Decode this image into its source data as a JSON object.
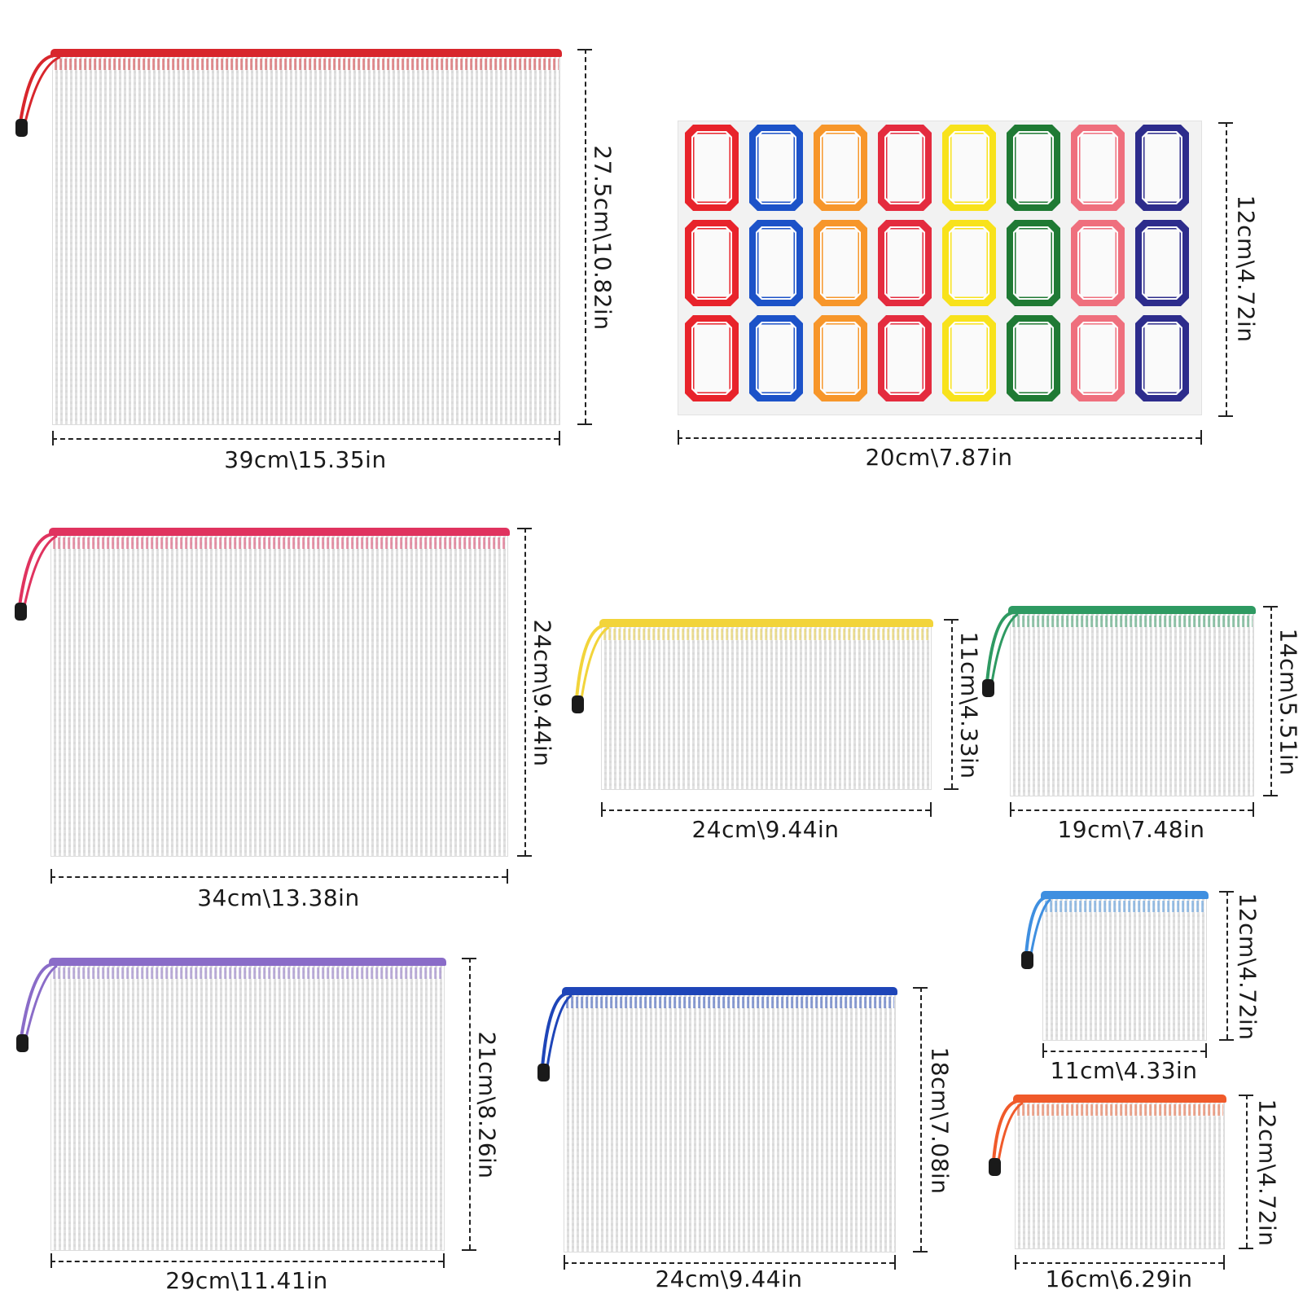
{
  "colors": {
    "red": "#d8262c",
    "pink": "#e0335f",
    "yellow": "#f2d43a",
    "green": "#2e9a62",
    "purple": "#8a6cc8",
    "blue": "#1e45b8",
    "light_blue": "#3f8fe0",
    "orange": "#f05a2a"
  },
  "label_sheet": {
    "colors": [
      "#e8232b",
      "#1c52c8",
      "#f7962a",
      "#e42b3e",
      "#f8e21b",
      "#1f7a34",
      "#ef6f7d",
      "#2d2c8c"
    ],
    "rows": 3,
    "width_label": "20cm\\7.87in",
    "height_label": "12cm\\4.72in"
  },
  "bags": [
    {
      "id": "red-bag",
      "color": "red",
      "width_label": "39cm\\15.35in",
      "height_label": "27.5cm\\10.82in"
    },
    {
      "id": "pink-bag",
      "color": "pink",
      "width_label": "34cm\\13.38in",
      "height_label": "24cm\\9.44in"
    },
    {
      "id": "yellow-bag",
      "color": "yellow",
      "width_label": "24cm\\9.44in",
      "height_label": "11cm\\4.33in"
    },
    {
      "id": "green-bag",
      "color": "green",
      "width_label": "19cm\\7.48in",
      "height_label": "14cm\\5.51in"
    },
    {
      "id": "light-blue-bag",
      "color": "light_blue",
      "width_label": "11cm\\4.33in",
      "height_label": "12cm\\4.72in"
    },
    {
      "id": "purple-bag",
      "color": "purple",
      "width_label": "29cm\\11.41in",
      "height_label": "21cm\\8.26in"
    },
    {
      "id": "blue-bag",
      "color": "blue",
      "width_label": "24cm\\9.44in",
      "height_label": "18cm\\7.08in"
    },
    {
      "id": "orange-bag",
      "color": "orange",
      "width_label": "16cm\\6.29in",
      "height_label": "12cm\\4.72in"
    }
  ]
}
